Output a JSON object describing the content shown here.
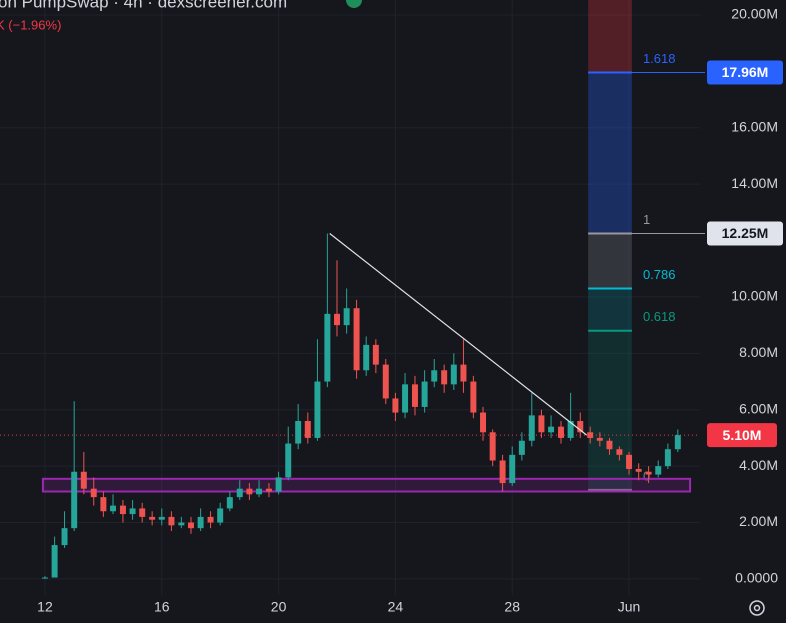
{
  "header": {
    "title": "on PumpSwap · 4h · dexscreener.com",
    "change": "K (−1.96%)"
  },
  "chart_data": {
    "type": "candlestick",
    "x": [
      12,
      12.33,
      12.67,
      13,
      13.33,
      13.67,
      14,
      14.33,
      14.67,
      15,
      15.33,
      15.67,
      16,
      16.33,
      16.67,
      17,
      17.33,
      17.67,
      18,
      18.33,
      18.67,
      19,
      19.33,
      19.67,
      20,
      20.33,
      20.67,
      21,
      21.33,
      21.67,
      22,
      22.33,
      22.67,
      23,
      23.33,
      23.67,
      24,
      24.33,
      24.67,
      25,
      25.33,
      25.67,
      26,
      26.33,
      26.67,
      27,
      27.33,
      27.67,
      28,
      28.33,
      28.67,
      29,
      29.33,
      29.67,
      30,
      30.33,
      30.67,
      31,
      31.33,
      31.67,
      32,
      32.33,
      32.67,
      33,
      33.33,
      33.67
    ],
    "open": [
      0.05,
      0.05,
      1.2,
      1.8,
      3.8,
      3.2,
      2.9,
      2.4,
      2.6,
      2.3,
      2.5,
      2.2,
      2.1,
      2.2,
      1.9,
      2.0,
      1.8,
      2.2,
      2.0,
      2.5,
      2.9,
      3.2,
      3.0,
      3.2,
      3.1,
      3.6,
      4.8,
      5.6,
      5.0,
      7.0,
      9.4,
      9.0,
      9.6,
      7.4,
      8.3,
      7.6,
      6.4,
      5.9,
      6.9,
      6.1,
      7.0,
      7.4,
      6.9,
      7.6,
      7.0,
      5.9,
      5.2,
      4.2,
      3.4,
      4.4,
      4.9,
      5.8,
      5.2,
      5.4,
      5.0,
      5.6,
      5.2,
      5.0,
      4.9,
      4.6,
      4.4,
      3.9,
      3.8,
      3.7,
      4.0,
      4.6
    ],
    "high": [
      0.1,
      1.5,
      2.4,
      6.3,
      4.5,
      3.6,
      3.1,
      3.0,
      2.8,
      2.8,
      2.7,
      2.4,
      2.5,
      2.4,
      2.2,
      2.2,
      2.5,
      2.4,
      2.7,
      3.1,
      3.5,
      3.4,
      3.5,
      3.4,
      3.8,
      5.4,
      6.2,
      5.9,
      8.5,
      12.25,
      11.3,
      10.3,
      9.9,
      8.6,
      8.5,
      7.8,
      6.6,
      7.3,
      7.2,
      7.4,
      7.8,
      7.6,
      8.0,
      8.5,
      7.2,
      6.1,
      5.3,
      4.4,
      4.7,
      5.2,
      6.6,
      6.0,
      5.8,
      5.6,
      6.6,
      5.9,
      5.4,
      5.2,
      5.0,
      4.7,
      4.5,
      4.1,
      4.0,
      4.2,
      4.8,
      5.3
    ],
    "low": [
      0.0,
      0.05,
      1.1,
      1.7,
      3.0,
      2.6,
      2.2,
      2.3,
      2.0,
      2.1,
      2.0,
      1.9,
      1.9,
      1.7,
      1.8,
      1.6,
      1.7,
      1.8,
      1.9,
      2.4,
      2.8,
      2.8,
      2.9,
      2.9,
      3.0,
      3.5,
      4.6,
      4.8,
      4.9,
      6.8,
      8.6,
      8.7,
      7.1,
      7.2,
      7.3,
      6.2,
      5.6,
      5.7,
      5.8,
      5.9,
      6.8,
      6.6,
      6.7,
      6.6,
      5.7,
      4.9,
      4.0,
      3.1,
      3.3,
      4.2,
      4.7,
      5.0,
      5.0,
      4.8,
      4.9,
      5.0,
      4.8,
      4.7,
      4.4,
      4.2,
      3.7,
      3.5,
      3.4,
      3.6,
      3.9,
      4.5
    ],
    "close": [
      0.05,
      1.2,
      1.8,
      3.8,
      3.2,
      2.9,
      2.4,
      2.6,
      2.3,
      2.5,
      2.2,
      2.1,
      2.2,
      1.9,
      2.0,
      1.8,
      2.2,
      2.0,
      2.5,
      2.9,
      3.2,
      3.0,
      3.2,
      3.1,
      3.6,
      4.8,
      5.6,
      5.0,
      7.0,
      9.4,
      9.0,
      9.6,
      7.4,
      8.3,
      7.6,
      6.4,
      5.9,
      6.9,
      6.1,
      7.0,
      7.4,
      6.9,
      7.6,
      7.0,
      5.9,
      5.2,
      4.2,
      3.4,
      4.4,
      4.9,
      5.8,
      5.2,
      5.4,
      5.0,
      5.6,
      5.2,
      5.0,
      4.9,
      4.6,
      4.4,
      3.9,
      3.8,
      3.7,
      4.0,
      4.6,
      5.1
    ],
    "up_color": "#26a69a",
    "down_color": "#ef5350",
    "xlim": [
      10.46,
      34.43
    ],
    "ylim": [
      -0.57,
      20.53
    ],
    "xticks": [
      12,
      16,
      20,
      24,
      28,
      {
        "value": 32,
        "label": "Jun"
      }
    ],
    "yticks": [
      {
        "value": 0,
        "label": "0.0000"
      },
      {
        "value": 2,
        "label": "2.00M"
      },
      {
        "value": 4,
        "label": "4.00M"
      },
      {
        "value": 6,
        "label": "6.00M"
      },
      {
        "value": 8,
        "label": "8.00M"
      },
      {
        "value": 10,
        "label": "10.00M"
      },
      {
        "value": 14,
        "label": "14.00M"
      },
      {
        "value": 16,
        "label": "16.00M"
      },
      {
        "value": 20,
        "label": "20.00M"
      }
    ],
    "grid": true,
    "last_price": {
      "value": 5.1,
      "label": "5.10M",
      "color": "#f23645"
    },
    "fibonacci": {
      "x": [
        30.6,
        32.1
      ],
      "levels": [
        {
          "ratio": "1.618",
          "value": 17.96,
          "color": "#2962ff",
          "axis_label": "17.96M"
        },
        {
          "ratio": "1",
          "value": 12.25,
          "color": "#9598a1",
          "axis_label": "12.25M"
        },
        {
          "ratio": "0.786",
          "value": 10.3,
          "color": "#00bcd4"
        },
        {
          "ratio": "0.618",
          "value": 8.8,
          "color": "#089981"
        },
        {
          "ratio": "0",
          "value": 3.16,
          "color": "#787b86"
        }
      ]
    },
    "zone": {
      "x": [
        11.93,
        34.09
      ],
      "y": [
        3.1,
        3.55
      ],
      "color": "#9c27b0"
    },
    "trend_line": {
      "x": [
        21.75,
        30.55
      ],
      "y": [
        12.25,
        5.1
      ],
      "color": "#e0e3eb"
    }
  }
}
